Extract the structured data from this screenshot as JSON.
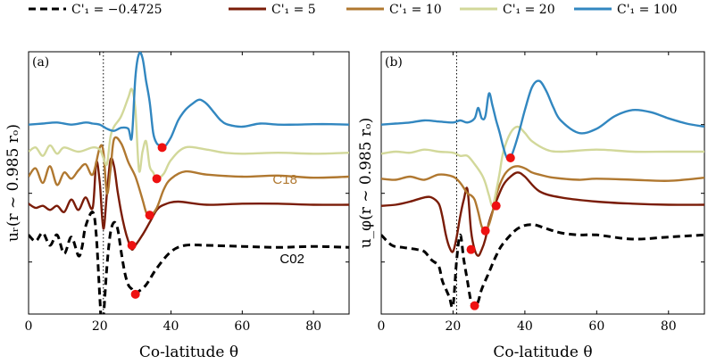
{
  "chart_data": {
    "type": "line",
    "legend": {
      "placement": "top",
      "entries": [
        {
          "name": "C'1 = -0.4725",
          "label": "C'₁ = −0.4725",
          "color": "#000000",
          "dashed": true
        },
        {
          "name": "C'1 = 5",
          "label": "C'₁ = 5",
          "color": "#7a1c08",
          "dashed": false
        },
        {
          "name": "C'1 = 10",
          "label": "C'₁ = 10",
          "color": "#b07830",
          "dashed": false
        },
        {
          "name": "C'1 = 20",
          "label": "C'₁ = 20",
          "color": "#d2d89a",
          "dashed": false
        },
        {
          "name": "C'1 = 100",
          "label": "C'₁ = 100",
          "color": "#3287c0",
          "dashed": false
        }
      ]
    },
    "panels": [
      {
        "id": "a",
        "panel_label": "(a)",
        "xlabel": "Co-latitude θ",
        "ylabel": "u_r(r ∼ 0.985 r_o)",
        "ylabel_text": "uᵣ(r ∼ 0.985 rₒ)",
        "xlim": [
          0,
          90
        ],
        "xticks": [
          0,
          20,
          40,
          60,
          80
        ],
        "ylim": [
          -5.8,
          6.8
        ],
        "vline_x": 21,
        "annotations": [
          {
            "text": "C18",
            "x": 72,
            "y": 0.45,
            "color": "#b07830"
          },
          {
            "text": "C02",
            "x": 74,
            "y": -3.35,
            "color": "#000000"
          }
        ],
        "series": [
          {
            "name": "C'1 = -0.4725",
            "offset": -2.0,
            "x": [
              0,
              2,
              4,
              6,
              8,
              10,
              12,
              14,
              15,
              16,
              18,
              19,
              20,
              20.5,
              21,
              22,
              23,
              24,
              25,
              26,
              27,
              28,
              29,
              30,
              31,
              33,
              36,
              40,
              44,
              50,
              60,
              70,
              80,
              90
            ],
            "y": [
              0,
              -0.3,
              0.1,
              -0.5,
              0,
              -0.9,
              -0.1,
              -1.0,
              -0.6,
              0.4,
              1.1,
              0,
              -3.0,
              -4.3,
              -4.0,
              -1.5,
              0.1,
              0.6,
              0.3,
              -0.8,
              -1.8,
              -2.4,
              -2.6,
              -2.8,
              -2.7,
              -2.4,
              -1.6,
              -0.8,
              -0.5,
              -0.5,
              -0.55,
              -0.6,
              -0.55,
              -0.6
            ],
            "marker": {
              "x": 30,
              "y": -2.85
            }
          },
          {
            "name": "C'1 = 5",
            "offset": -0.5,
            "x": [
              0,
              2,
              4,
              6,
              8,
              10,
              12,
              14,
              16,
              18,
              19,
              20,
              21,
              22,
              23,
              24,
              25,
              26,
              27,
              28,
              29,
              30,
              32,
              34,
              36,
              38,
              42,
              50,
              60,
              70,
              80,
              90
            ],
            "y": [
              0,
              -0.2,
              -0.1,
              -0.3,
              -0.1,
              -0.4,
              0.2,
              -0.3,
              0.3,
              -0.2,
              2.0,
              1.0,
              -1.2,
              0.5,
              2.1,
              1.8,
              0.6,
              -0.4,
              -1.2,
              -1.8,
              -2.2,
              -2.0,
              -1.5,
              -0.9,
              -0.3,
              -0.05,
              0.1,
              -0.05,
              0,
              0,
              -0.05,
              -0.05
            ],
            "marker": {
              "x": 29,
              "y": -2.0
            }
          },
          {
            "name": "C'1 = 10",
            "offset": 0.8,
            "x": [
              0,
              2,
              4,
              6,
              8,
              10,
              12,
              14,
              16,
              18,
              20,
              21,
              22,
              23,
              24,
              26,
              28,
              30,
              32,
              33,
              34,
              36,
              38,
              40,
              44,
              50,
              60,
              70,
              80,
              90
            ],
            "y": [
              0,
              0.4,
              -0.3,
              0.5,
              -0.4,
              0.2,
              -0.1,
              0.3,
              0.6,
              0.1,
              1.4,
              1.2,
              -0.8,
              0.3,
              1.8,
              1.6,
              0.7,
              0,
              -1.1,
              -1.7,
              -1.9,
              -1.5,
              -0.6,
              -0.1,
              0.25,
              0.1,
              0,
              0.05,
              -0.05,
              0
            ],
            "marker": {
              "x": 34,
              "y": -1.85
            }
          },
          {
            "name": "C'1 = 20",
            "offset": 2.0,
            "x": [
              0,
              2,
              4,
              6,
              8,
              10,
              14,
              18,
              20,
              21,
              22,
              23,
              24,
              26,
              28,
              29,
              30,
              31,
              32,
              33,
              34,
              35,
              36,
              38,
              40,
              44,
              50,
              55,
              60,
              70,
              80,
              90
            ],
            "y": [
              0,
              0.2,
              -0.2,
              0.3,
              -0.1,
              0.2,
              0,
              0.2,
              0.1,
              -0.3,
              -0.6,
              0.7,
              1.2,
              1.7,
              2.6,
              3.0,
              2.0,
              -0.9,
              0,
              0.5,
              -0.7,
              -1.0,
              -1.3,
              -1.05,
              -0.4,
              0.2,
              0.1,
              -0.05,
              -0.1,
              -0.05,
              -0.1,
              -0.05
            ],
            "marker": {
              "x": 36,
              "y": -1.3
            }
          },
          {
            "name": "C'1 = 100",
            "offset": 3.3,
            "x": [
              0,
              4,
              8,
              12,
              16,
              18,
              20,
              22,
              24,
              26,
              28,
              29,
              30,
              31,
              32,
              33,
              34,
              35,
              36,
              37,
              38,
              40,
              42,
              44,
              46,
              48,
              50,
              52,
              54,
              56,
              60,
              65,
              70,
              75,
              80,
              85,
              90
            ],
            "y": [
              0,
              0.05,
              0.1,
              0.0,
              0.1,
              0.05,
              0,
              -0.2,
              -0.3,
              -0.15,
              -0.2,
              -0.6,
              2.3,
              3.4,
              3.2,
              2.1,
              1.1,
              -0.4,
              -0.9,
              -1.0,
              -1.1,
              -0.6,
              0.2,
              0.7,
              1.0,
              1.2,
              1.0,
              0.6,
              0.2,
              0,
              -0.1,
              0.05,
              0,
              0,
              0.02,
              0.02,
              0
            ],
            "marker": {
              "x": 37.5,
              "y": -1.1
            }
          }
        ]
      },
      {
        "id": "b",
        "panel_label": "(b)",
        "xlabel": "Co-latitude θ",
        "ylabel": "u_φ(r ∼ 0.985 r_o)",
        "ylabel_text": "u_φ(r ∼ 0.985 rₒ)",
        "xlim": [
          0,
          90
        ],
        "xticks": [
          0,
          20,
          40,
          60,
          80
        ],
        "ylim": [
          -5.8,
          6.8
        ],
        "vline_x": 21,
        "annotations": [],
        "series": [
          {
            "name": "C'1 = -0.4725",
            "offset": -2.0,
            "x": [
              0,
              3,
              6,
              10,
              12,
              14,
              16,
              17,
              18,
              19,
              20,
              21,
              22,
              23,
              24,
              25,
              26,
              27,
              28,
              30,
              32,
              34,
              38,
              42,
              46,
              50,
              55,
              60,
              70,
              80,
              90
            ],
            "y": [
              0,
              -0.5,
              -0.6,
              -0.7,
              -0.8,
              -1.2,
              -1.5,
              -2.2,
              -2.6,
              -3.0,
              -3.4,
              -1.2,
              0,
              -1.2,
              -2.2,
              -3.2,
              -3.5,
              -3.2,
              -2.6,
              -1.8,
              -1.0,
              -0.4,
              0.3,
              0.5,
              0.3,
              0.1,
              0.0,
              0.0,
              -0.2,
              -0.1,
              0.0
            ],
            "marker": {
              "x": 26,
              "y": -3.4
            }
          },
          {
            "name": "C'1 = 5",
            "offset": -0.6,
            "x": [
              0,
              4,
              8,
              12,
              14,
              16,
              17,
              18,
              19,
              20,
              21,
              22,
              23,
              24,
              25,
              26,
              27,
              28,
              29,
              30,
              32,
              34,
              36,
              38,
              40,
              44,
              50,
              60,
              70,
              80,
              90
            ],
            "y": [
              0,
              0.05,
              0.2,
              0.4,
              0.4,
              0.1,
              -0.5,
              -1.4,
              -2.0,
              -2.2,
              -1.5,
              -0.5,
              0.3,
              0.8,
              -1.2,
              -2.1,
              -2.4,
              -2.1,
              -1.6,
              -0.8,
              0.2,
              1.0,
              1.4,
              1.6,
              1.4,
              0.7,
              0.4,
              0.2,
              0.1,
              0.05,
              0.05
            ],
            "marker": {
              "x": 25,
              "y": -2.1
            }
          },
          {
            "name": "C'1 = 10",
            "offset": 0.7,
            "x": [
              0,
              4,
              8,
              12,
              16,
              20,
              22,
              24,
              25,
              26,
              27,
              28,
              29,
              30,
              31,
              32,
              34,
              36,
              38,
              40,
              42,
              44,
              48,
              55,
              60,
              70,
              80,
              90
            ],
            "y": [
              0,
              -0.05,
              0.1,
              -0.05,
              0.2,
              0.1,
              -0.2,
              -0.7,
              -0.8,
              -1.0,
              -1.6,
              -2.3,
              -2.5,
              -2.2,
              -1.6,
              -0.8,
              0.1,
              0.5,
              0.6,
              0.5,
              0.3,
              0.2,
              0.05,
              -0.05,
              0,
              -0.05,
              -0.1,
              0.05
            ],
            "marker": {
              "x": 29,
              "y": -2.5
            }
          },
          {
            "name": "C'1 = 20",
            "offset": 1.9,
            "x": [
              0,
              4,
              8,
              12,
              16,
              20,
              22,
              24,
              26,
              28,
              29,
              30,
              31,
              32,
              33,
              34,
              36,
              38,
              40,
              42,
              46,
              50,
              60,
              70,
              80,
              90
            ],
            "y": [
              0,
              0.1,
              0.05,
              0.2,
              0.1,
              0.05,
              -0.1,
              -0.1,
              -0.5,
              -1.0,
              -1.4,
              -2.0,
              -2.5,
              -1.8,
              -0.9,
              0.1,
              1.0,
              1.3,
              1.0,
              0.6,
              0.2,
              0.1,
              0.2,
              0.1,
              0.1,
              0.1
            ],
            "marker": {
              "x": 32,
              "y": -2.5
            }
          },
          {
            "name": "C'1 = 100",
            "offset": 3.3,
            "x": [
              0,
              4,
              8,
              12,
              16,
              20,
              22,
              24,
              26,
              27,
              28,
              29,
              30,
              31,
              32,
              33,
              34,
              35,
              36,
              38,
              40,
              42,
              44,
              46,
              48,
              50,
              55,
              60,
              65,
              70,
              75,
              80,
              85,
              90
            ],
            "y": [
              0,
              0.05,
              0.1,
              0.2,
              0.15,
              0.1,
              0.2,
              0.1,
              0.3,
              0.8,
              0.3,
              0.4,
              1.5,
              0.9,
              0.2,
              -0.4,
              -1.1,
              -1.6,
              -1.6,
              -0.6,
              0.7,
              1.8,
              2.1,
              1.6,
              0.8,
              0.2,
              -0.4,
              -0.2,
              0.4,
              0.7,
              0.6,
              0.3,
              0.05,
              -0.1
            ],
            "marker": {
              "x": 36,
              "y": -1.6
            }
          }
        ]
      }
    ]
  }
}
